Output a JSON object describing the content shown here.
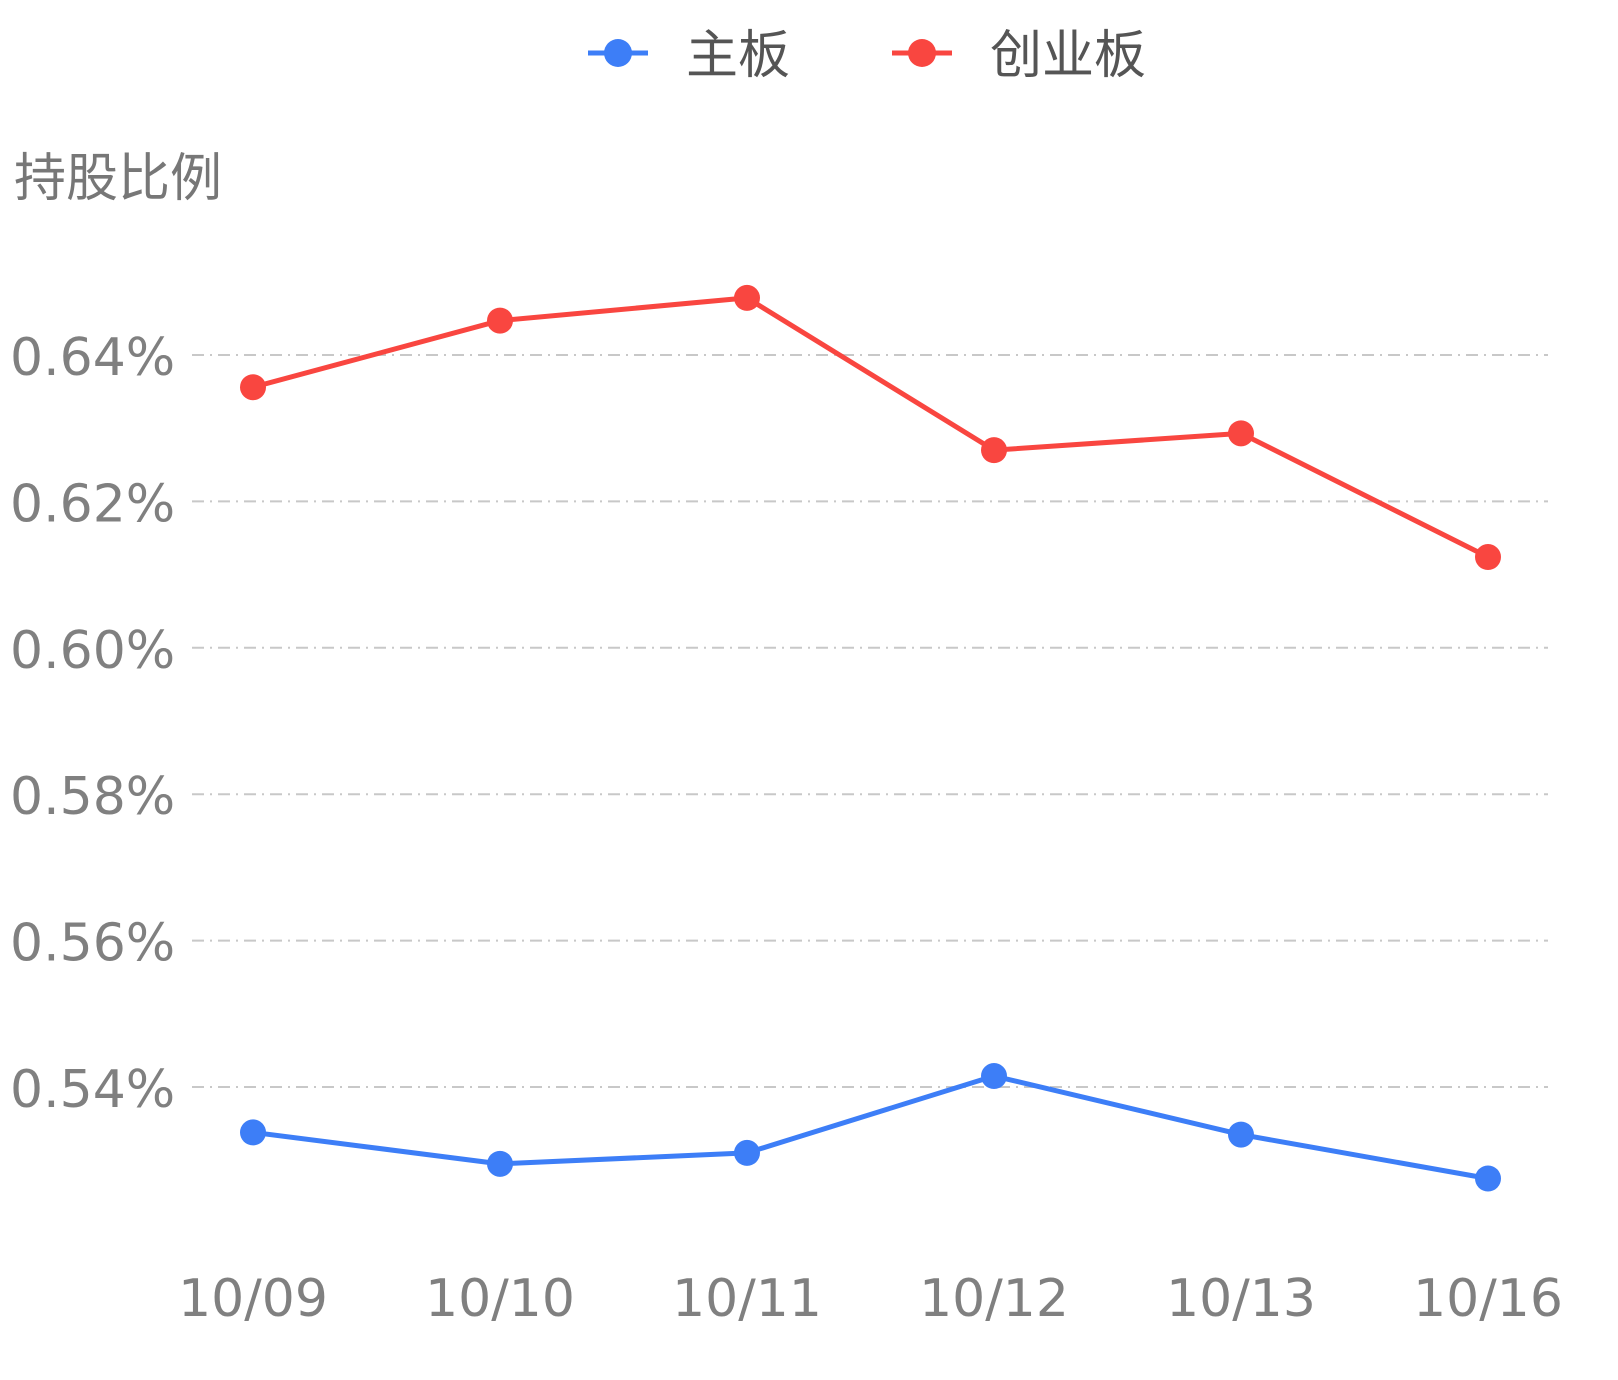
{
  "chart_data": {
    "type": "line",
    "ylabel": "持股比例",
    "categories": [
      "10/09",
      "10/10",
      "10/11",
      "10/12",
      "10/13",
      "10/16"
    ],
    "y_ticks": [
      {
        "value": 0.54,
        "label": "0.54%"
      },
      {
        "value": 0.56,
        "label": "0.56%"
      },
      {
        "value": 0.58,
        "label": "0.58%"
      },
      {
        "value": 0.6,
        "label": "0.60%"
      },
      {
        "value": 0.62,
        "label": "0.62%"
      },
      {
        "value": 0.64,
        "label": "0.64%"
      }
    ],
    "ylim": [
      0.52,
      0.66
    ],
    "grid": true,
    "legend_position": "top-center",
    "series": [
      {
        "name": "主板",
        "color": "#3d7ef7",
        "values": [
          0.5338,
          0.5295,
          0.531,
          0.5415,
          0.5335,
          0.5275
        ]
      },
      {
        "name": "创业板",
        "color": "#f94640",
        "values": [
          0.6356,
          0.6447,
          0.6478,
          0.627,
          0.6293,
          0.6124
        ]
      }
    ]
  }
}
